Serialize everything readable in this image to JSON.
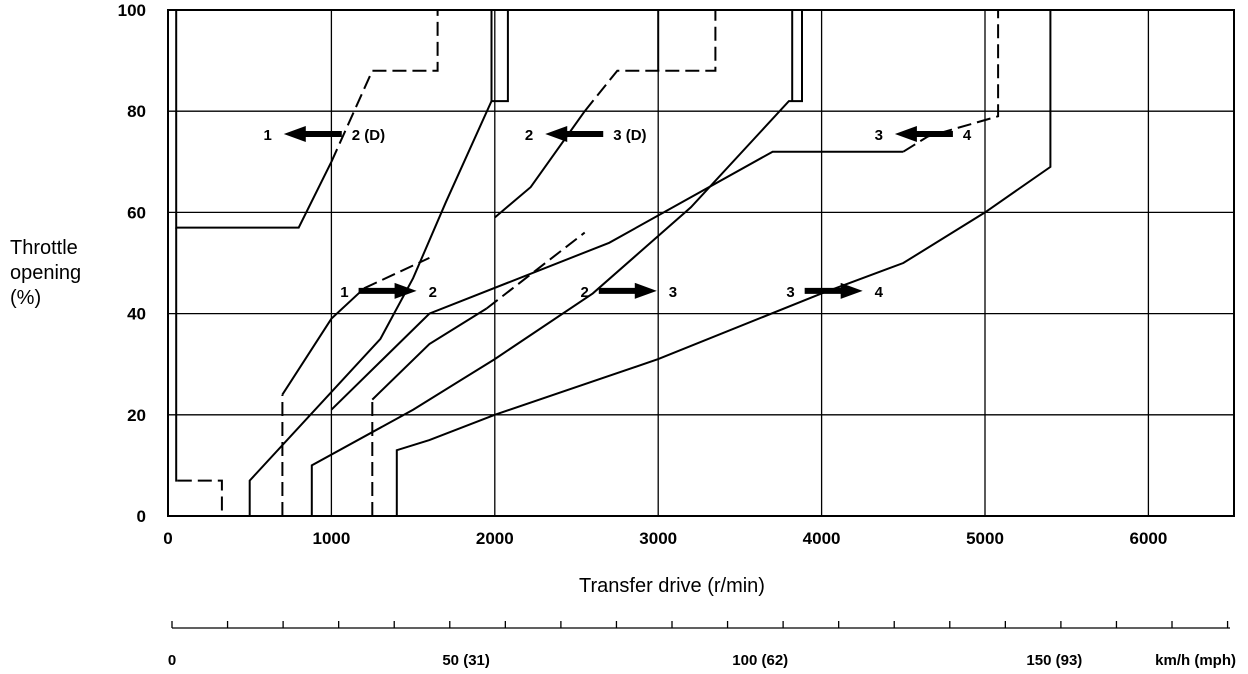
{
  "chart_data": {
    "type": "line",
    "title": "",
    "ylabel_lines": [
      "Throttle",
      "opening",
      "(%)"
    ],
    "xlabel": "Transfer drive (r/min)",
    "xlim": [
      0,
      6500
    ],
    "ylim": [
      0,
      100
    ],
    "x_ticks": [
      0,
      1000,
      2000,
      3000,
      4000,
      5000,
      6000
    ],
    "x_tick_labels": [
      "0",
      "1000",
      "2000",
      "3000",
      "4000",
      "5000",
      "6000"
    ],
    "y_ticks": [
      0,
      20,
      40,
      60,
      80,
      100
    ],
    "y_tick_labels": [
      "0",
      "20",
      "40",
      "60",
      "80",
      "100"
    ],
    "grid": true,
    "speed_axis": {
      "unit_label": "km/h (mph)",
      "labels": [
        {
          "label": "0",
          "rpm": 0
        },
        {
          "label": "50 (31)",
          "rpm": 1800
        },
        {
          "label": "100 (62)",
          "rpm": 3600
        },
        {
          "label": "150 (93)",
          "rpm": 5400
        }
      ],
      "minor_step_rpm": 340
    },
    "series": [
      {
        "style": "solid",
        "points": [
          [
            50,
            100
          ],
          [
            50,
            57
          ],
          [
            800,
            57
          ],
          [
            1000,
            70
          ]
        ]
      },
      {
        "style": "dashed",
        "points": [
          [
            1000,
            70
          ],
          [
            1250,
            88
          ],
          [
            1650,
            88
          ],
          [
            1650,
            100
          ]
        ]
      },
      {
        "style": "dashed",
        "points": [
          [
            60,
            7
          ],
          [
            330,
            7
          ],
          [
            330,
            0
          ]
        ]
      },
      {
        "style": "solid",
        "points": [
          [
            50,
            57
          ],
          [
            50,
            7
          ],
          [
            60,
            7
          ]
        ]
      },
      {
        "style": "dashed",
        "points": [
          [
            700,
            0
          ],
          [
            700,
            24
          ]
        ]
      },
      {
        "style": "solid",
        "points": [
          [
            700,
            24
          ],
          [
            1000,
            39
          ],
          [
            1200,
            45
          ]
        ]
      },
      {
        "style": "dashed",
        "points": [
          [
            1200,
            45
          ],
          [
            1600,
            51
          ]
        ]
      },
      {
        "style": "solid",
        "points": [
          [
            500,
            0
          ],
          [
            500,
            7
          ],
          [
            1300,
            35
          ],
          [
            1500,
            47
          ],
          [
            1700,
            62
          ],
          [
            1980,
            82
          ],
          [
            2080,
            82
          ],
          [
            2080,
            100
          ]
        ]
      },
      {
        "style": "solid",
        "points": [
          [
            1980,
            82
          ],
          [
            1980,
            100
          ]
        ]
      },
      {
        "style": "dashed",
        "points": [
          [
            1250,
            0
          ],
          [
            1250,
            23
          ]
        ]
      },
      {
        "style": "solid",
        "points": [
          [
            1250,
            23
          ],
          [
            1600,
            34
          ],
          [
            1950,
            41
          ]
        ]
      },
      {
        "style": "dashed",
        "points": [
          [
            1950,
            41
          ],
          [
            2550,
            56
          ]
        ]
      },
      {
        "style": "solid",
        "points": [
          [
            2000,
            59
          ],
          [
            2220,
            65
          ],
          [
            2550,
            80
          ]
        ]
      },
      {
        "style": "dashed",
        "points": [
          [
            2550,
            80
          ],
          [
            2750,
            88
          ],
          [
            3350,
            88
          ],
          [
            3350,
            100
          ]
        ]
      },
      {
        "style": "solid",
        "points": [
          [
            3000,
            88
          ],
          [
            3000,
            100
          ]
        ]
      },
      {
        "style": "solid",
        "points": [
          [
            880,
            0
          ],
          [
            880,
            10
          ],
          [
            1500,
            21
          ],
          [
            2000,
            31
          ],
          [
            2600,
            44
          ],
          [
            3200,
            61
          ],
          [
            3800,
            82
          ],
          [
            3880,
            82
          ],
          [
            3880,
            100
          ]
        ]
      },
      {
        "style": "solid",
        "points": [
          [
            3820,
            82
          ],
          [
            3820,
            100
          ]
        ]
      },
      {
        "style": "solid",
        "points": [
          [
            1000,
            21
          ],
          [
            1600,
            40
          ],
          [
            2700,
            54
          ],
          [
            3700,
            72
          ],
          [
            4500,
            72
          ]
        ]
      },
      {
        "style": "dashed",
        "points": [
          [
            4500,
            72
          ],
          [
            4650,
            75
          ],
          [
            5080,
            79
          ],
          [
            5080,
            100
          ]
        ]
      },
      {
        "style": "solid",
        "points": [
          [
            1400,
            0
          ],
          [
            1400,
            13
          ],
          [
            1600,
            15
          ],
          [
            2000,
            20
          ],
          [
            3000,
            31
          ],
          [
            4000,
            44
          ],
          [
            4500,
            50
          ],
          [
            5000,
            60
          ],
          [
            5400,
            69
          ],
          [
            5400,
            100
          ]
        ]
      }
    ],
    "annotations": [
      {
        "from": "1",
        "to": "2 (D)",
        "direction": "left",
        "rpm": 880,
        "pct": 75.5
      },
      {
        "from": "2",
        "to": "3 (D)",
        "direction": "left",
        "rpm": 2480,
        "pct": 75.5
      },
      {
        "from": "3",
        "to": "4",
        "direction": "left",
        "rpm": 4620,
        "pct": 75.5
      },
      {
        "from": "1",
        "to": "2",
        "direction": "right",
        "rpm": 1350,
        "pct": 44.5
      },
      {
        "from": "2",
        "to": "3",
        "direction": "right",
        "rpm": 2820,
        "pct": 44.5
      },
      {
        "from": "3",
        "to": "4",
        "direction": "right",
        "rpm": 4080,
        "pct": 44.5
      }
    ]
  }
}
